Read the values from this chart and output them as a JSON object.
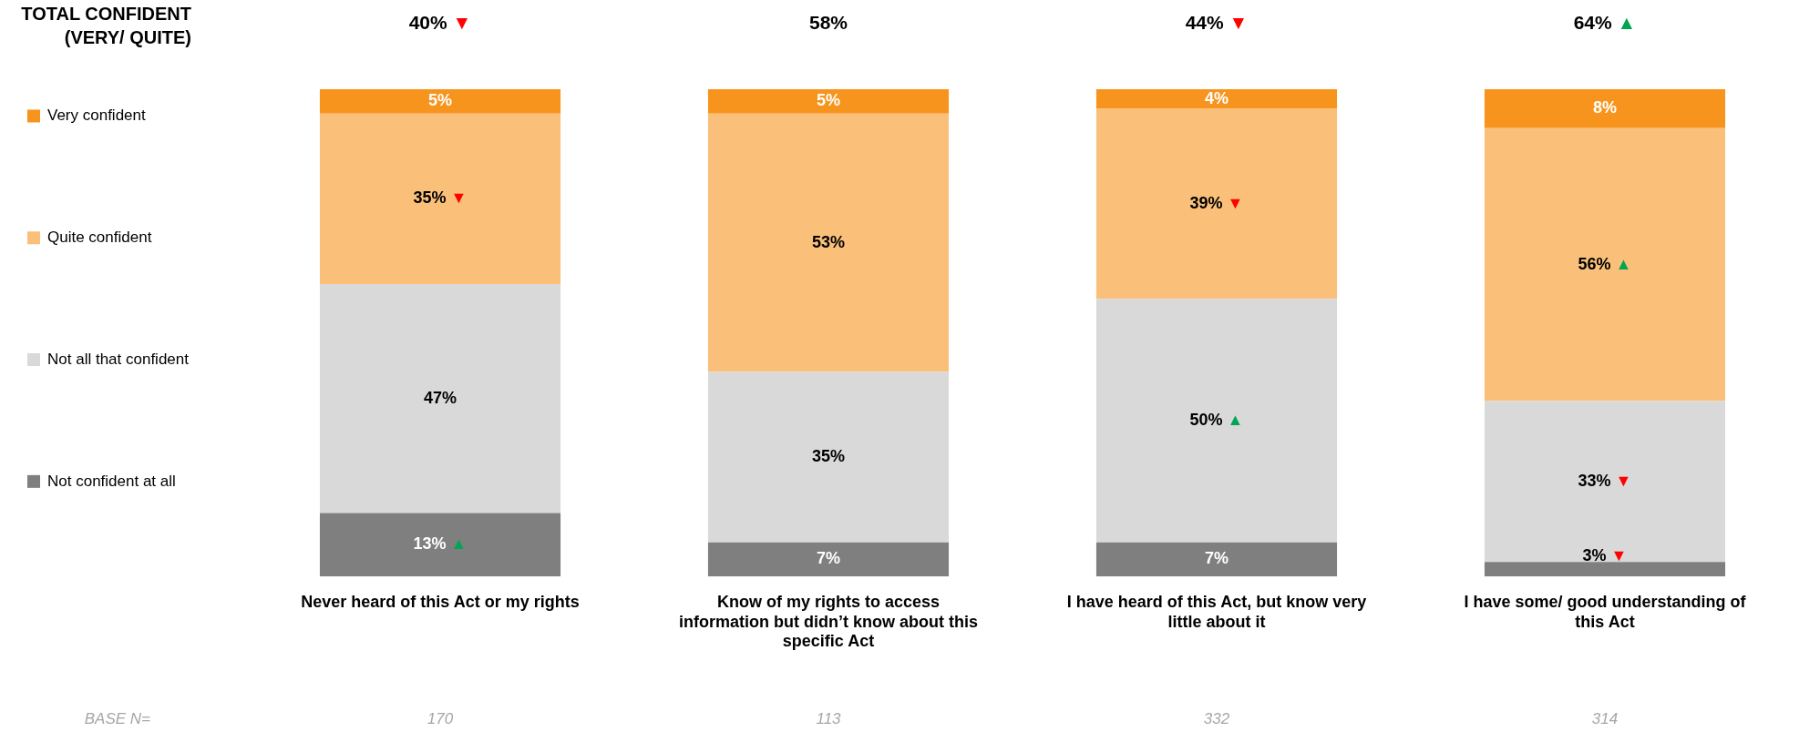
{
  "chart_data": {
    "type": "bar",
    "stacked": true,
    "categories": [
      "Never heard of this Act or my rights",
      "Know of my rights to access information but didn’t know about this specific Act",
      "I have heard of this Act, but know very little about it",
      "I have some/ good understanding of this Act"
    ],
    "series": [
      {
        "name": "Not confident at all",
        "color": "#7f7f7f",
        "values": [
          13,
          7,
          7,
          3
        ],
        "value_labels": [
          "13% ▲",
          "7%",
          "7%",
          "3% ▼"
        ]
      },
      {
        "name": "Not all that confident",
        "color": "#d9d9d9",
        "values": [
          47,
          35,
          50,
          33
        ],
        "value_labels": [
          "47%",
          "35%",
          "50% ▲",
          "33% ▼"
        ]
      },
      {
        "name": "Quite confident",
        "color": "#fac07a",
        "values": [
          35,
          53,
          39,
          56
        ],
        "value_labels": [
          "35% ▼",
          "53%",
          "39% ▼",
          "56% ▲"
        ]
      },
      {
        "name": "Very confident",
        "color": "#f7941d",
        "values": [
          5,
          5,
          4,
          8
        ],
        "value_labels": [
          "5%",
          "5%",
          "4%",
          "8%"
        ]
      }
    ],
    "legend": "left",
    "annotations": [
      "TOTAL CONFIDENT\n(VERY/ QUITE)",
      "40% ▼",
      "58%",
      "44% ▼",
      "64% ▲",
      "BASE N=",
      "170",
      "113",
      "332",
      "314"
    ]
  }
}
